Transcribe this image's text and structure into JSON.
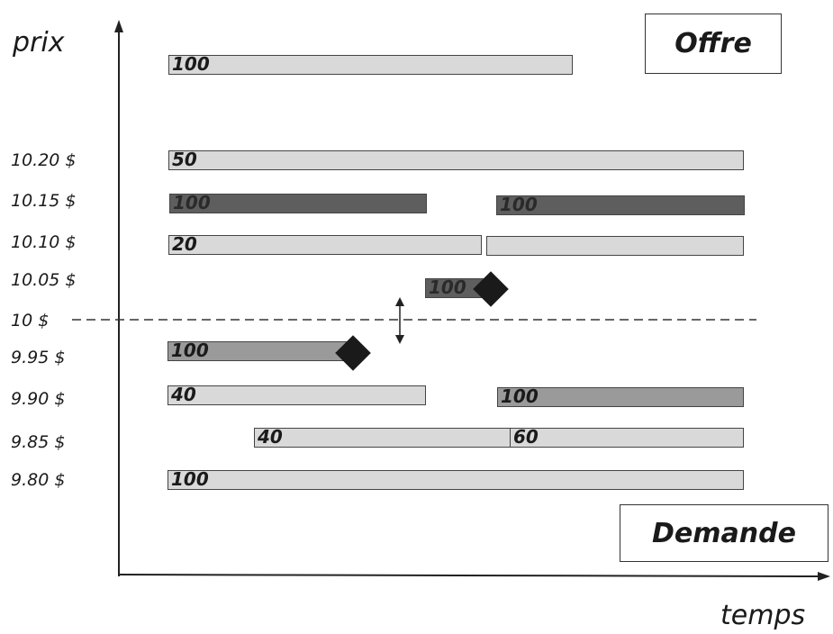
{
  "labels": {
    "y_axis": "prix",
    "x_axis": "temps",
    "offer_box": "Offre",
    "demand_box": "Demande"
  },
  "price_levels": [
    {
      "key": "p1020",
      "label": "10.20 $"
    },
    {
      "key": "p1015",
      "label": "10.15 $"
    },
    {
      "key": "p1010",
      "label": "10.10 $"
    },
    {
      "key": "p1005",
      "label": "10.05 $"
    },
    {
      "key": "p1000",
      "label": "10 $"
    },
    {
      "key": "p995",
      "label": "9.95 $"
    },
    {
      "key": "p990",
      "label": "9.90 $"
    },
    {
      "key": "p985",
      "label": "9.85 $"
    },
    {
      "key": "p980",
      "label": "9.80 $"
    }
  ],
  "orders": {
    "top": "100",
    "p1020": "50",
    "p1015_a": "100",
    "p1015_b": "100",
    "p1010": "20",
    "p1005": "100",
    "p995": "100",
    "p990_a": "40",
    "p990_b": "100",
    "p985_a": "40",
    "p985_b": "60",
    "p980": "100"
  },
  "colors": {
    "light_bar": "#d9d9d9",
    "mid_bar": "#9a9a9a",
    "dark_bar": "#5e5e5e",
    "marker": "#1a1a1a"
  }
}
